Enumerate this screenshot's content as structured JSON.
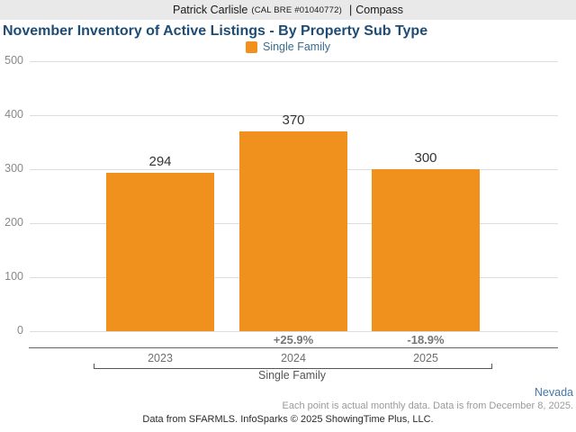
{
  "header": {
    "name": "Patrick Carlisle",
    "license": "(CAL BRE #01040772)",
    "pipe": "|",
    "brokerage": "Compass"
  },
  "title": "November Inventory of Active Listings - By Property Sub Type",
  "legend": {
    "label": "Single Family",
    "color": "#f0911e"
  },
  "chart_data": {
    "type": "bar",
    "title": "November Inventory of Active Listings - By Property Sub Type",
    "series_name": "Single Family",
    "categories": [
      "2023",
      "2024",
      "2025"
    ],
    "values": [
      294,
      370,
      300
    ],
    "pct_change_labels": [
      "",
      "+25.9%",
      "-18.9%"
    ],
    "group_label": "Single Family",
    "xlabel": "",
    "ylabel": "",
    "ylim": [
      0,
      500
    ],
    "yticks": [
      0,
      100,
      200,
      300,
      400,
      500
    ],
    "grid": true,
    "legend_position": "top-center",
    "bar_color": "#f0911e"
  },
  "footer": {
    "region": "Nevada",
    "note": "Each point is actual monthly data. Data is from December 8, 2025.",
    "attribution": "Data from SFARMLS. InfoSparks © 2025 ShowingTime Plus, LLC."
  },
  "colors": {
    "bar_orange": "#f0911e",
    "title_blue": "#1e4c74",
    "legend_text_blue": "#3a6b8f",
    "region_link_blue": "#4478a8",
    "header_bar_gray": "#e9e9e9"
  }
}
